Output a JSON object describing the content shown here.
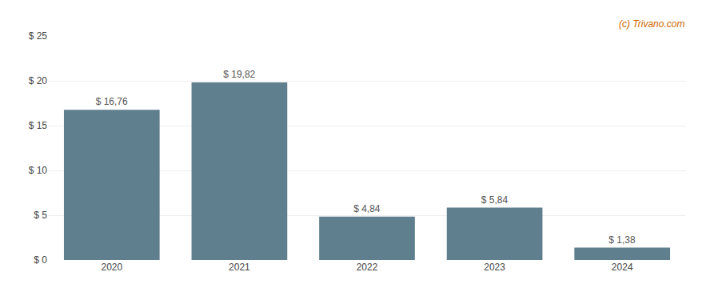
{
  "chart_data": {
    "type": "bar",
    "categories": [
      "2020",
      "2021",
      "2022",
      "2023",
      "2024"
    ],
    "values": [
      16.76,
      19.82,
      4.84,
      5.84,
      1.38
    ],
    "value_labels": [
      "$ 16,76",
      "$ 19,82",
      "$ 4,84",
      "$ 5,84",
      "$ 1,38"
    ],
    "color": "#5f7f8f",
    "ylim": [
      0,
      25
    ],
    "yticks": [
      {
        "value": 0,
        "label": "$ 0"
      },
      {
        "value": 5,
        "label": "$ 5"
      },
      {
        "value": 10,
        "label": "$ 10"
      },
      {
        "value": 15,
        "label": "$ 15"
      },
      {
        "value": 20,
        "label": "$ 20"
      },
      {
        "value": 25,
        "label": "$ 25"
      }
    ],
    "grid": true,
    "annotations": [
      {
        "text": "(c) Trivano.com",
        "color": "#cc6600"
      }
    ]
  }
}
